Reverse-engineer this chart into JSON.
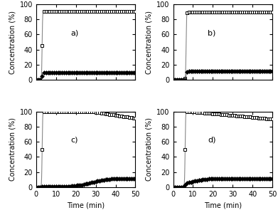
{
  "panels": [
    {
      "label": "a)",
      "ch4_breakthrough": 3.0,
      "ch4_plateau": 91,
      "ch4_drop": false,
      "c2h6_breakthrough": 3.0,
      "c2h6_plateau_fast": 10,
      "c2h6_slow_rise": false
    },
    {
      "label": "b)",
      "ch4_breakthrough": 6.5,
      "ch4_plateau": 90,
      "ch4_drop": false,
      "c2h6_breakthrough": 6.5,
      "c2h6_plateau_fast": 11,
      "c2h6_slow_rise": false
    },
    {
      "label": "c)",
      "ch4_breakthrough": 3.0,
      "ch4_plateau": 100,
      "ch4_drop": true,
      "ch4_drop_start": 28,
      "ch4_drop_end": 50,
      "ch4_drop_val": 91,
      "c2h6_breakthrough": 3.0,
      "c2h6_slow_rise": true,
      "c2h6_rise_start": 28,
      "c2h6_plateau_val": 11
    },
    {
      "label": "d)",
      "ch4_breakthrough": 6.0,
      "ch4_plateau": 100,
      "ch4_drop": true,
      "ch4_drop_start": 8,
      "ch4_drop_end": 50,
      "ch4_drop_val": 90,
      "c2h6_breakthrough": 6.0,
      "c2h6_slow_rise": true,
      "c2h6_rise_start": 8,
      "c2h6_plateau_val": 11
    }
  ],
  "xlim": [
    0,
    50
  ],
  "ylim": [
    0,
    100
  ],
  "xticks": [
    0,
    10,
    20,
    30,
    40,
    50
  ],
  "yticks": [
    0,
    20,
    40,
    60,
    80,
    100
  ],
  "xlabel": "Time (min)",
  "ylabel": "Concentration (%)",
  "line_color": "#888888",
  "markersize_ch4": 3.5,
  "markersize_c2h6": 3.5,
  "fontsize": 7,
  "label_fontsize": 8
}
